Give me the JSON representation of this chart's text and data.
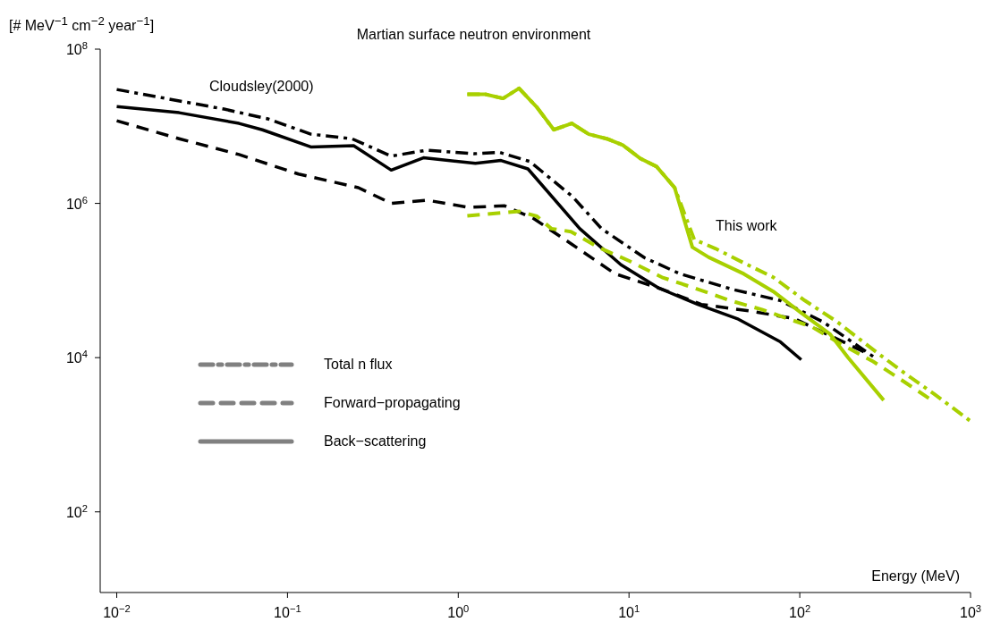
{
  "chart_data": {
    "type": "line",
    "title": "Martian surface neutron environment",
    "xlabel": "Energy (MeV)",
    "ylabel": "[# MeV$^{−1}$ cm$^{−2}$ year$^{−1}$]",
    "log": "xy",
    "grid": false,
    "marker": "none",
    "xlim": [
      0.008,
      1000
    ],
    "xticks": [
      {
        "value": 0.01,
        "label": "10$^{−2}$"
      },
      {
        "value": 0.1,
        "label": "10$^{−1}$"
      },
      {
        "value": 1,
        "label": "10$^{0}$"
      },
      {
        "value": 10,
        "label": "10$^{1}$"
      },
      {
        "value": 100,
        "label": "10$^{2}$"
      },
      {
        "value": 1000,
        "label": "10$^{3}$"
      }
    ],
    "ylim": [
      9,
      100000000
    ],
    "yticks": [
      {
        "value": 100,
        "label": "10$^{2}$"
      },
      {
        "value": 10000,
        "label": "10$^{4}$"
      },
      {
        "value": 1000000,
        "label": "10$^{6}$"
      },
      {
        "value": 100000000,
        "label": "10$^{8}$"
      }
    ],
    "annotations": [
      "Cloudsley(2000)",
      "This work",
      "Total n flux",
      "Forward−propagating",
      "Back−scattering"
    ],
    "series": [
      {
        "color": "#000000",
        "line_style": "dashdot",
        "x": [
          0.01,
          0.0425,
          0.0776,
          0.137,
          0.238,
          0.405,
          0.656,
          1.24,
          1.74,
          2.62,
          4.68,
          6.9,
          12.3,
          19.9,
          41,
          77,
          137,
          275
        ],
        "values": [
          30000000,
          16700000,
          12400000,
          7900000,
          6900000,
          4100000,
          4900000,
          4400000,
          4600000,
          3500000,
          1220000,
          470000,
          198000,
          122000,
          76000,
          55000,
          29000,
          10000
        ]
      },
      {
        "color": "#000000",
        "line_style": "dashed",
        "x": [
          0.01,
          0.0232,
          0.052,
          0.116,
          0.26,
          0.405,
          0.656,
          1.14,
          1.87,
          2.75,
          4.68,
          8.3,
          14.9,
          26.5,
          52,
          93,
          256
        ],
        "values": [
          11800000,
          6900000,
          4300000,
          2400000,
          1600000,
          1000000,
          1100000,
          890000,
          930000,
          640000,
          290000,
          122000,
          80000,
          49000,
          40000,
          32000,
          11000
        ]
      },
      {
        "color": "#000000",
        "line_style": "solid",
        "x": [
          0.01,
          0.0232,
          0.052,
          0.0713,
          0.137,
          0.244,
          0.405,
          0.625,
          1.26,
          1.78,
          2.56,
          5.15,
          8.97,
          14.9,
          25.3,
          43,
          77,
          102
        ],
        "values": [
          18000000,
          15000000,
          10900000,
          9000000,
          5400000,
          5600000,
          2700000,
          3900000,
          3300000,
          3600000,
          2800000,
          470000,
          160000,
          80000,
          49000,
          32000,
          16000,
          9400
        ]
      },
      {
        "color": "#a8d000",
        "line_style": "dashdot",
        "x": [
          1.13,
          1.44,
          1.83,
          2.27,
          2.89,
          3.63,
          4.62,
          5.81,
          7.4,
          9.2,
          11.7,
          14.5,
          18.5,
          24.1,
          32,
          47,
          70,
          107,
          166,
          282,
          415,
          610,
          1000
        ],
        "values": [
          26000000,
          26000000,
          23000000,
          31000000,
          17600000,
          9000000,
          10900000,
          7900000,
          6900000,
          5700000,
          3800000,
          3000000,
          1600000,
          340000,
          260000,
          169000,
          110000,
          55000,
          29000,
          11700,
          6200,
          3400,
          1500
        ]
      },
      {
        "color": "#a8d000",
        "line_style": "dashed",
        "x": [
          1.13,
          2.27,
          2.89,
          3.51,
          4.57,
          6.6,
          10.1,
          15.6,
          24.1,
          39,
          60,
          85,
          118,
          174,
          269,
          376,
          580
        ],
        "values": [
          690000,
          790000,
          680000,
          470000,
          430000,
          270000,
          178000,
          110000,
          80000,
          55000,
          42000,
          32000,
          25000,
          15000,
          8900,
          5500,
          2900
        ]
      },
      {
        "color": "#a8d000",
        "line_style": "solid",
        "x": [
          1.13,
          1.44,
          1.83,
          2.27,
          2.89,
          3.63,
          4.62,
          5.81,
          7.4,
          9.2,
          11.7,
          14.5,
          18.5,
          23.5,
          29.3,
          47,
          70,
          102,
          151,
          192,
          310
        ],
        "values": [
          26000000,
          26000000,
          23000000,
          31000000,
          17600000,
          9000000,
          10900000,
          7900000,
          6900000,
          5700000,
          3800000,
          3000000,
          1600000,
          270000,
          200000,
          122000,
          72000,
          38000,
          20000,
          10000,
          2800
        ]
      }
    ]
  }
}
